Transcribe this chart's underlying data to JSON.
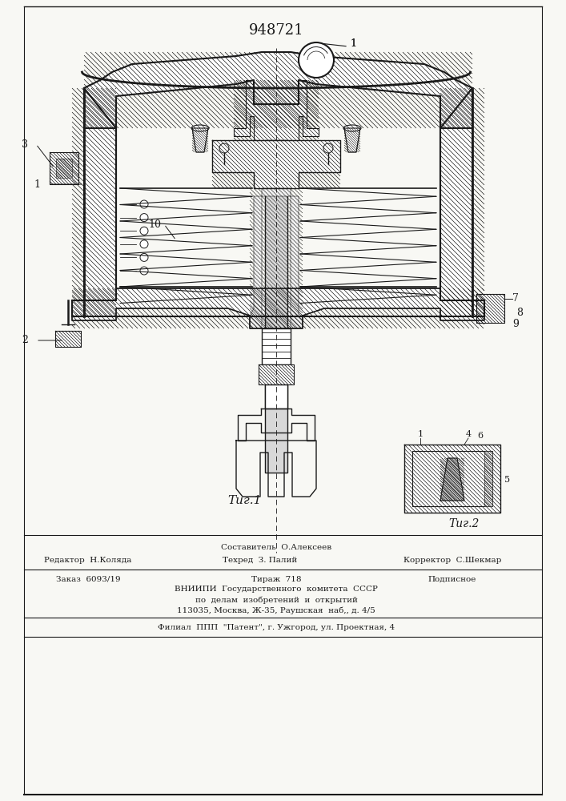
{
  "patent_number": "948721",
  "background_color": "#f8f8f4",
  "line_color": "#1a1a1a",
  "fig1_label": "Τиг.1",
  "fig2_label": "Τиг.2",
  "footer_col1_line1": "Редактор  Н.Коляда",
  "footer_col2_line1": "Техред  З. Палий",
  "footer_col3_line1": "Корректор  С.Шекмар",
  "footer_top_center": "Составитель  О.Алексеев",
  "footer_order": "Заказ  6093/19",
  "footer_tirazh": "Тираж  718",
  "footer_podpisnoe": "Подписное",
  "footer_vniipи": "ВНИИПИ  Государственного  комитета  СССР",
  "footer_po_delam": "по  делам  изобретений  и  открытий",
  "footer_address": "113035, Москва, Ж-35, Раушская  наб,, д. 4/5",
  "footer_filial": "Филиал  ППП  \"Патент\", г. Ужгород, ул. Проектная, 4"
}
